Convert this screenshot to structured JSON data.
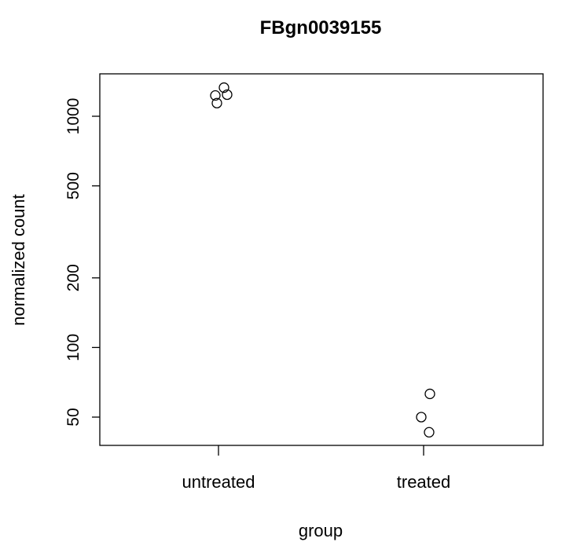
{
  "chart_data": {
    "type": "scatter",
    "title": "FBgn0039155",
    "xlabel": "group",
    "ylabel": "normalized count",
    "categories": [
      "untreated",
      "treated"
    ],
    "y_scale": "log",
    "ylim": [
      38,
      1650
    ],
    "yticks": [
      50,
      100,
      200,
      500,
      1000
    ],
    "grid": false,
    "legend": "none",
    "points": [
      {
        "group": "untreated",
        "y": 1230
      },
      {
        "group": "untreated",
        "y": 1330
      },
      {
        "group": "untreated",
        "y": 1240
      },
      {
        "group": "untreated",
        "y": 1140
      },
      {
        "group": "treated",
        "y": 63
      },
      {
        "group": "treated",
        "y": 50
      },
      {
        "group": "treated",
        "y": 43
      }
    ]
  }
}
